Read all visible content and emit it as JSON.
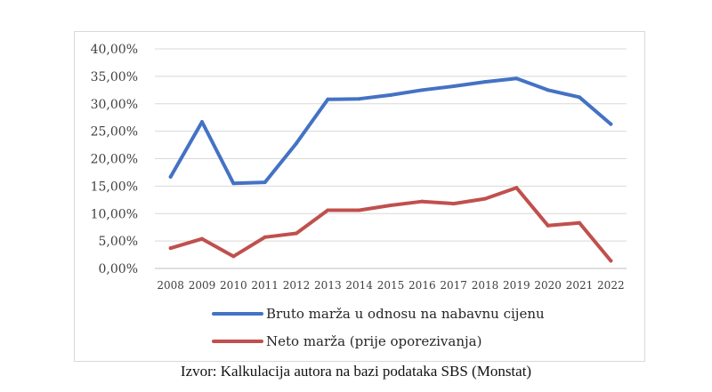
{
  "caption": "Izvor: Kalkulacija autora na bazi podataka SBS (Monstat)",
  "chart_data": {
    "type": "line",
    "title": "",
    "xlabel": "",
    "ylabel": "",
    "categories": [
      "2008",
      "2009",
      "2010",
      "2011",
      "2012",
      "2013",
      "2014",
      "2015",
      "2016",
      "2017",
      "2018",
      "2019",
      "2020",
      "2021",
      "2022"
    ],
    "ylim": [
      0,
      40
    ],
    "yticks": [
      "0,00%",
      "5,00%",
      "10,00%",
      "15,00%",
      "20,00%",
      "25,00%",
      "30,00%",
      "35,00%",
      "40,00%"
    ],
    "grid": true,
    "legend_position": "bottom",
    "series": [
      {
        "name": "Bruto marža u odnosu na nabavnu cijenu",
        "color": "#4472c4",
        "values": [
          16.7,
          26.7,
          15.5,
          15.7,
          22.8,
          30.8,
          30.9,
          31.6,
          32.5,
          33.2,
          34.0,
          34.6,
          32.5,
          31.2,
          26.3
        ]
      },
      {
        "name": "Neto marža (prije oporezivanja)",
        "color": "#c0504d",
        "values": [
          3.7,
          5.4,
          2.2,
          5.7,
          6.4,
          10.6,
          10.6,
          11.5,
          12.2,
          11.8,
          12.7,
          14.7,
          7.8,
          8.3,
          1.4
        ]
      }
    ]
  }
}
